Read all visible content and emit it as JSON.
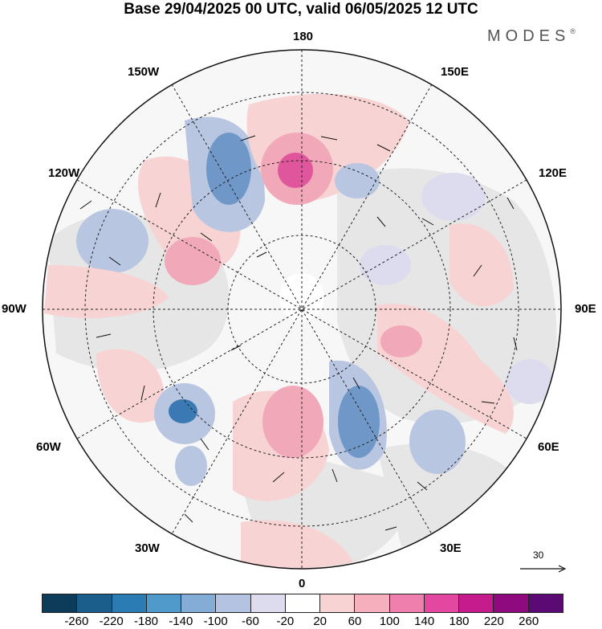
{
  "title": "Base 29/04/2025 00 UTC, valid 06/05/2025 12 UTC",
  "brand": "MODES",
  "brand_mark": "®",
  "longitude_labels": {
    "top": "180",
    "bottom": "0",
    "left": "90W",
    "right": "90E",
    "upper_left_1": "150W",
    "upper_left_2": "120W",
    "upper_right_1": "150E",
    "upper_right_2": "120E",
    "lower_left_1": "60W",
    "lower_left_2": "30W",
    "lower_right_1": "60E",
    "lower_right_2": "30E"
  },
  "reference_vector": "30",
  "colorbar": {
    "colors": [
      "#0d3b5a",
      "#1b5e8c",
      "#2b7cb4",
      "#4f9acb",
      "#83acd6",
      "#b4c3e1",
      "#dcdcee",
      "#ffffff",
      "#f8d3d3",
      "#f6afbd",
      "#ef7fac",
      "#e3479f",
      "#c51b8d",
      "#8e0a7e",
      "#5a0a72"
    ],
    "ticks": [
      "-260",
      "-220",
      "-180",
      "-140",
      "-100",
      "-60",
      "-20",
      "20",
      "60",
      "100",
      "140",
      "180",
      "220",
      "260"
    ]
  },
  "anomaly_colors": {
    "land": "#ececec",
    "deep_negative": "#3b79b4",
    "negative": "#6f98c9",
    "weak_negative": "#b9c6e2",
    "faint_negative": "#dcdcee",
    "faint_positive": "#f8d3d3",
    "positive": "#f1a9ba",
    "strong_positive": "#e0569c"
  }
}
